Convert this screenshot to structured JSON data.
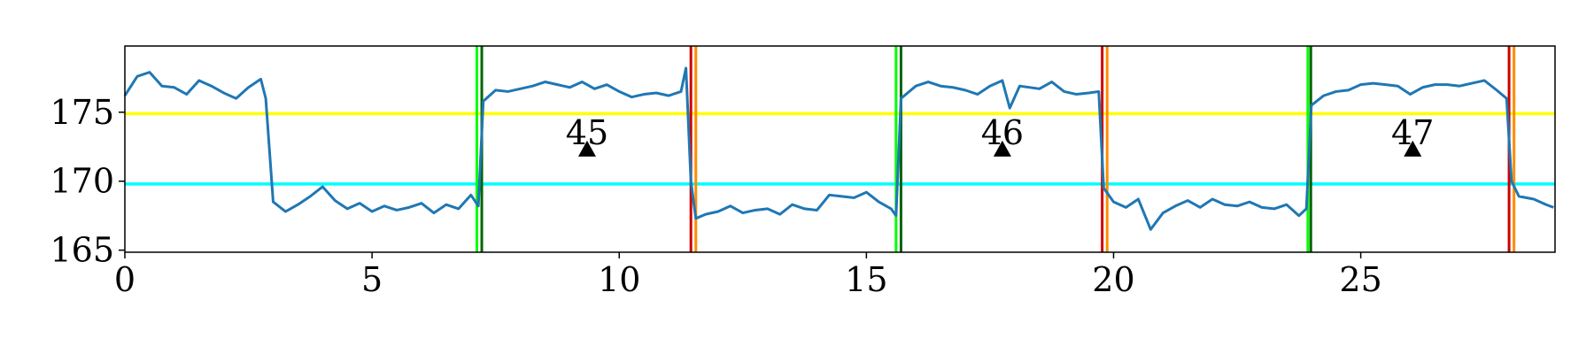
{
  "chart_data": {
    "type": "line",
    "color": "#1f77b4",
    "x": [
      0,
      0.25,
      0.5,
      0.75,
      1,
      1.25,
      1.5,
      1.75,
      2,
      2.25,
      2.5,
      2.75,
      2.85,
      3.0,
      3.25,
      3.5,
      3.75,
      4.0,
      4.25,
      4.5,
      4.75,
      5,
      5.25,
      5.5,
      5.75,
      6,
      6.25,
      6.5,
      6.75,
      7.0,
      7.15,
      7.25,
      7.5,
      7.75,
      8,
      8.25,
      8.5,
      8.75,
      9,
      9.25,
      9.5,
      9.75,
      10,
      10.25,
      10.5,
      10.75,
      11,
      11.25,
      11.35,
      11.45,
      11.55,
      11.75,
      12,
      12.25,
      12.5,
      12.75,
      13,
      13.25,
      13.5,
      13.75,
      14,
      14.25,
      14.5,
      14.75,
      15,
      15.25,
      15.5,
      15.6,
      15.7,
      16,
      16.25,
      16.5,
      16.75,
      17,
      17.25,
      17.5,
      17.75,
      17.9,
      18.1,
      18.5,
      18.75,
      19,
      19.25,
      19.5,
      19.7,
      19.8,
      20,
      20.25,
      20.5,
      20.75,
      21,
      21.25,
      21.5,
      21.75,
      22,
      22.25,
      22.5,
      22.75,
      23,
      23.25,
      23.5,
      23.75,
      23.9,
      24.0,
      24.25,
      24.5,
      24.75,
      25,
      25.25,
      25.5,
      25.75,
      26,
      26.25,
      26.5,
      26.75,
      27,
      27.25,
      27.5,
      27.75,
      27.95,
      28.05,
      28.2,
      28.5,
      28.75,
      28.9
    ],
    "values": [
      176.2,
      177.6,
      177.9,
      176.9,
      176.8,
      176.3,
      177.3,
      176.9,
      176.4,
      176.0,
      176.8,
      177.4,
      176.0,
      168.5,
      167.8,
      168.3,
      168.9,
      169.6,
      168.6,
      168.0,
      168.4,
      167.8,
      168.2,
      167.9,
      168.1,
      168.4,
      167.7,
      168.3,
      168.0,
      169.0,
      168.2,
      175.8,
      176.6,
      176.5,
      176.7,
      176.9,
      177.2,
      177.0,
      176.8,
      177.2,
      176.7,
      177.0,
      176.5,
      176.1,
      176.3,
      176.4,
      176.2,
      176.5,
      178.2,
      170.0,
      167.3,
      167.6,
      167.8,
      168.2,
      167.7,
      167.9,
      168.0,
      167.6,
      168.3,
      168.0,
      167.9,
      169.0,
      168.9,
      168.8,
      169.2,
      168.5,
      168.0,
      167.5,
      176.0,
      176.9,
      177.2,
      176.9,
      176.8,
      176.6,
      176.3,
      176.9,
      177.3,
      175.3,
      176.9,
      176.7,
      177.2,
      176.5,
      176.3,
      176.4,
      176.5,
      169.5,
      168.5,
      168.1,
      168.7,
      166.5,
      167.7,
      168.2,
      168.6,
      168.1,
      168.7,
      168.3,
      168.2,
      168.5,
      168.1,
      168.0,
      168.3,
      167.5,
      168.0,
      175.5,
      176.2,
      176.5,
      176.6,
      177.0,
      177.1,
      177.0,
      176.9,
      176.3,
      176.8,
      177.0,
      177.0,
      176.9,
      177.1,
      177.3,
      176.6,
      176.0,
      170.0,
      168.9,
      168.7,
      168.3,
      168.1
    ],
    "xlim": [
      0,
      28.93
    ],
    "ylim": [
      164.85,
      179.8
    ],
    "xticks": [
      0,
      5,
      10,
      15,
      20,
      25
    ],
    "yticks": [
      165,
      170,
      175
    ],
    "hlines": [
      {
        "y": 174.9,
        "color": "#ffff00"
      },
      {
        "y": 169.8,
        "color": "#00ffff"
      }
    ],
    "vlines": [
      {
        "x": 7.12,
        "color": "#00ff00"
      },
      {
        "x": 7.22,
        "color": "#006400"
      },
      {
        "x": 11.45,
        "color": "#cc0000"
      },
      {
        "x": 11.55,
        "color": "#ff8c00"
      },
      {
        "x": 15.6,
        "color": "#00ff00"
      },
      {
        "x": 15.7,
        "color": "#006400"
      },
      {
        "x": 19.77,
        "color": "#cc0000"
      },
      {
        "x": 19.87,
        "color": "#ff8c00"
      },
      {
        "x": 23.93,
        "color": "#00ff00"
      },
      {
        "x": 23.99,
        "color": "#006400"
      },
      {
        "x": 28.0,
        "color": "#cc0000"
      },
      {
        "x": 28.1,
        "color": "#ff8c00"
      }
    ],
    "markers": [
      {
        "x": 9.35,
        "y": 172.3,
        "label": "45"
      },
      {
        "x": 17.75,
        "y": 172.3,
        "label": "46"
      },
      {
        "x": 26.05,
        "y": 172.3,
        "label": "47"
      }
    ]
  }
}
